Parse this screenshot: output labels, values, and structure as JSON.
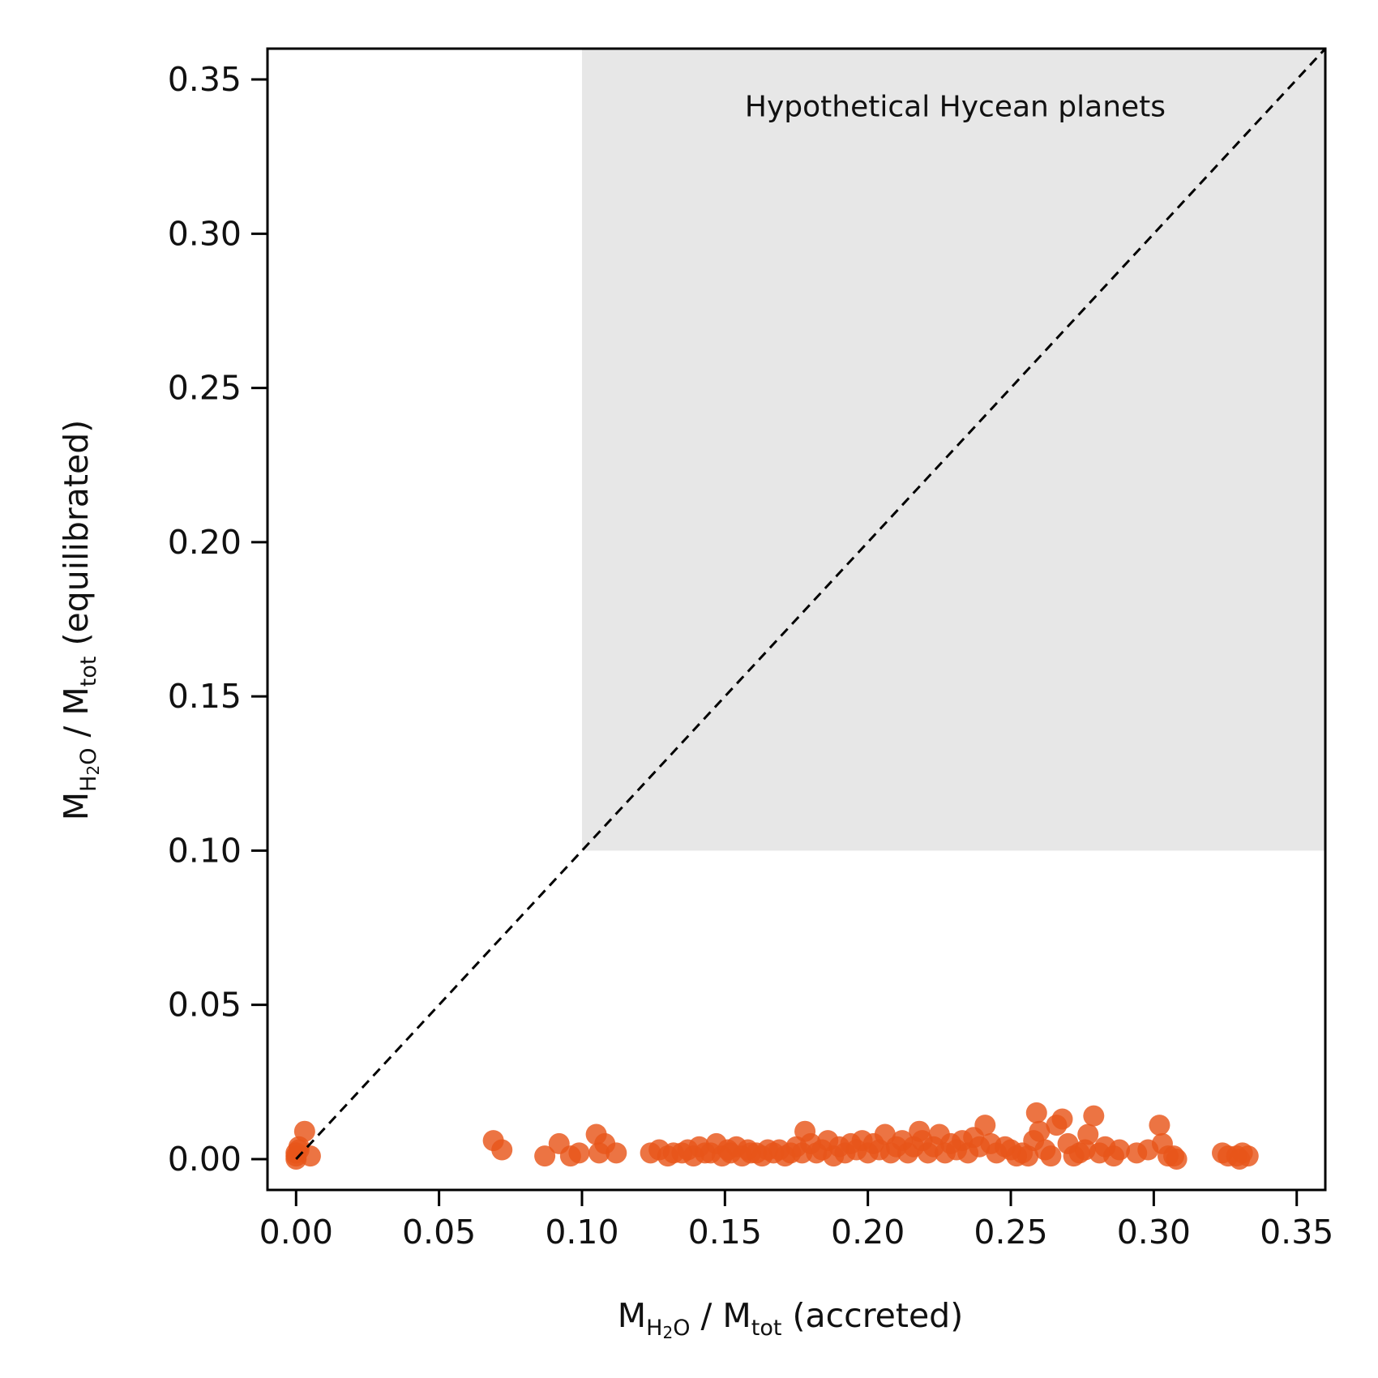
{
  "chart_data": {
    "type": "scatter",
    "title": "",
    "xlabel": {
      "main": "M",
      "sub1": "H",
      "sub2": "2",
      "sub3": "O",
      "mid": " / M",
      "sub4": "tot",
      "tail": " (accreted)"
    },
    "ylabel": {
      "main": "M",
      "sub1": "H",
      "sub2": "2",
      "sub3": "O",
      "mid": " / M",
      "sub4": "tot",
      "tail": " (equilibrated)"
    },
    "xlim": [
      -0.01,
      0.36
    ],
    "ylim": [
      -0.01,
      0.36
    ],
    "xticks": [
      "0.00",
      "0.05",
      "0.10",
      "0.15",
      "0.20",
      "0.25",
      "0.30",
      "0.35"
    ],
    "yticks": [
      "0.00",
      "0.05",
      "0.10",
      "0.15",
      "0.20",
      "0.25",
      "0.30",
      "0.35"
    ],
    "grid": false,
    "region": {
      "x_min": 0.1,
      "x_max": 0.36,
      "y_min": 0.1,
      "y_max": 0.36,
      "color": "#e7e7e7",
      "label": "Hypothetical Hycean planets"
    },
    "reference_line": {
      "from": [
        0,
        0
      ],
      "to": [
        0.36,
        0.36
      ],
      "style": "dashed",
      "color": "#000000"
    },
    "point_color": "#e8561a",
    "points": [
      [
        0.0,
        0.0
      ],
      [
        0.0,
        0.002
      ],
      [
        0.001,
        0.004
      ],
      [
        0.0,
        0.001
      ],
      [
        0.003,
        0.009
      ],
      [
        0.005,
        0.001
      ],
      [
        0.001,
        0.003
      ],
      [
        0.069,
        0.006
      ],
      [
        0.072,
        0.003
      ],
      [
        0.087,
        0.001
      ],
      [
        0.092,
        0.005
      ],
      [
        0.096,
        0.001
      ],
      [
        0.099,
        0.002
      ],
      [
        0.105,
        0.008
      ],
      [
        0.106,
        0.002
      ],
      [
        0.108,
        0.005
      ],
      [
        0.112,
        0.002
      ],
      [
        0.124,
        0.002
      ],
      [
        0.127,
        0.003
      ],
      [
        0.13,
        0.001
      ],
      [
        0.132,
        0.002
      ],
      [
        0.135,
        0.002
      ],
      [
        0.137,
        0.003
      ],
      [
        0.139,
        0.001
      ],
      [
        0.141,
        0.004
      ],
      [
        0.143,
        0.002
      ],
      [
        0.145,
        0.002
      ],
      [
        0.147,
        0.005
      ],
      [
        0.149,
        0.001
      ],
      [
        0.151,
        0.003
      ],
      [
        0.152,
        0.002
      ],
      [
        0.154,
        0.004
      ],
      [
        0.156,
        0.001
      ],
      [
        0.158,
        0.003
      ],
      [
        0.159,
        0.002
      ],
      [
        0.161,
        0.002
      ],
      [
        0.163,
        0.001
      ],
      [
        0.165,
        0.003
      ],
      [
        0.167,
        0.002
      ],
      [
        0.169,
        0.003
      ],
      [
        0.171,
        0.001
      ],
      [
        0.173,
        0.002
      ],
      [
        0.175,
        0.004
      ],
      [
        0.177,
        0.002
      ],
      [
        0.178,
        0.009
      ],
      [
        0.18,
        0.005
      ],
      [
        0.182,
        0.002
      ],
      [
        0.184,
        0.003
      ],
      [
        0.186,
        0.006
      ],
      [
        0.188,
        0.001
      ],
      [
        0.19,
        0.004
      ],
      [
        0.192,
        0.002
      ],
      [
        0.194,
        0.005
      ],
      [
        0.196,
        0.003
      ],
      [
        0.198,
        0.006
      ],
      [
        0.2,
        0.002
      ],
      [
        0.202,
        0.005
      ],
      [
        0.204,
        0.003
      ],
      [
        0.206,
        0.008
      ],
      [
        0.208,
        0.002
      ],
      [
        0.21,
        0.004
      ],
      [
        0.212,
        0.006
      ],
      [
        0.214,
        0.002
      ],
      [
        0.216,
        0.004
      ],
      [
        0.218,
        0.009
      ],
      [
        0.219,
        0.006
      ],
      [
        0.221,
        0.002
      ],
      [
        0.223,
        0.004
      ],
      [
        0.225,
        0.008
      ],
      [
        0.227,
        0.002
      ],
      [
        0.229,
        0.005
      ],
      [
        0.231,
        0.003
      ],
      [
        0.233,
        0.006
      ],
      [
        0.235,
        0.002
      ],
      [
        0.237,
        0.007
      ],
      [
        0.239,
        0.004
      ],
      [
        0.241,
        0.011
      ],
      [
        0.243,
        0.005
      ],
      [
        0.245,
        0.002
      ],
      [
        0.248,
        0.004
      ],
      [
        0.25,
        0.003
      ],
      [
        0.252,
        0.001
      ],
      [
        0.254,
        0.002
      ],
      [
        0.256,
        0.001
      ],
      [
        0.258,
        0.006
      ],
      [
        0.259,
        0.015
      ],
      [
        0.26,
        0.009
      ],
      [
        0.262,
        0.003
      ],
      [
        0.264,
        0.001
      ],
      [
        0.266,
        0.011
      ],
      [
        0.268,
        0.013
      ],
      [
        0.27,
        0.005
      ],
      [
        0.272,
        0.001
      ],
      [
        0.274,
        0.002
      ],
      [
        0.276,
        0.003
      ],
      [
        0.277,
        0.008
      ],
      [
        0.279,
        0.014
      ],
      [
        0.281,
        0.002
      ],
      [
        0.283,
        0.004
      ],
      [
        0.286,
        0.001
      ],
      [
        0.288,
        0.003
      ],
      [
        0.294,
        0.002
      ],
      [
        0.298,
        0.003
      ],
      [
        0.302,
        0.011
      ],
      [
        0.303,
        0.005
      ],
      [
        0.305,
        0.001
      ],
      [
        0.307,
        0.001
      ],
      [
        0.308,
        0.0
      ],
      [
        0.324,
        0.002
      ],
      [
        0.326,
        0.001
      ],
      [
        0.329,
        0.001
      ],
      [
        0.331,
        0.002
      ],
      [
        0.333,
        0.001
      ],
      [
        0.33,
        0.0
      ]
    ]
  }
}
